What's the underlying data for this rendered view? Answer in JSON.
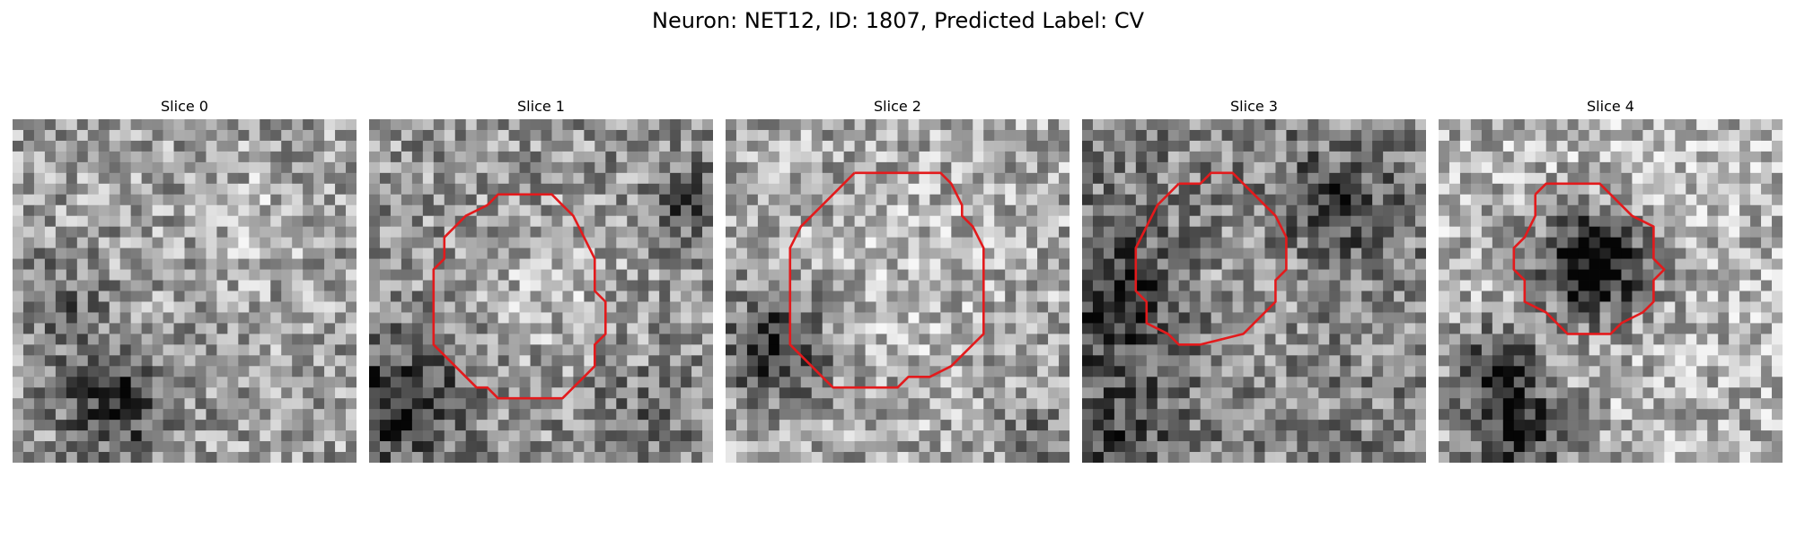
{
  "figure": {
    "title": "Neuron: NET12, ID: 1807, Predicted Label: CV"
  },
  "panels": [
    {
      "title": "Slice 0",
      "has_contour": false
    },
    {
      "title": "Slice 1",
      "has_contour": true
    },
    {
      "title": "Slice 2",
      "has_contour": true
    },
    {
      "title": "Slice 3",
      "has_contour": true
    },
    {
      "title": "Slice 4",
      "has_contour": true
    }
  ],
  "colors": {
    "contour": "#e31a1c",
    "background": "#ffffff",
    "text": "#000000"
  }
}
